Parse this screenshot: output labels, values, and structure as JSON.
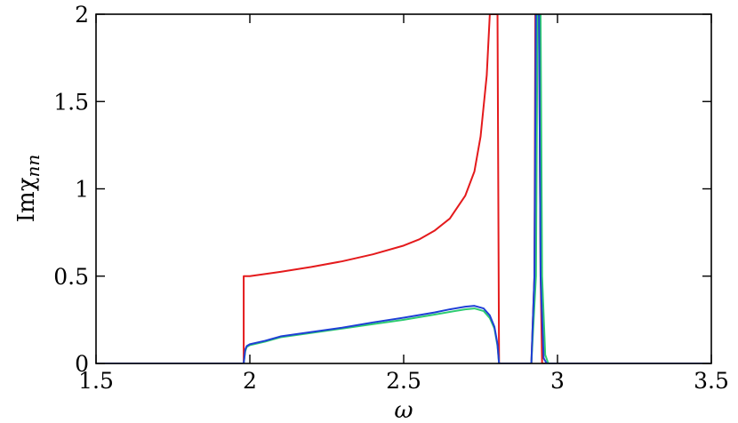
{
  "chart_data": {
    "type": "line",
    "xlabel": "ω",
    "ylabel": "Imχ",
    "ylabel_subscript": "nn",
    "xlim": [
      1.5,
      3.5
    ],
    "ylim": [
      0,
      2
    ],
    "x_ticks": [
      1.5,
      2,
      2.5,
      3,
      3.5
    ],
    "x_tick_labels": [
      "1.5",
      "2",
      "2.5",
      "3",
      "3.5"
    ],
    "y_ticks": [
      0,
      0.5,
      1,
      1.5,
      2
    ],
    "y_tick_labels": [
      "0",
      "0.5",
      "1",
      "1.5",
      "2"
    ],
    "grid": false,
    "series": [
      {
        "color": "#e41a1c",
        "points": [
          [
            1.5,
            0
          ],
          [
            1.98,
            0
          ],
          [
            1.98,
            0.5
          ],
          [
            2.0,
            0.5
          ],
          [
            2.1,
            0.525
          ],
          [
            2.2,
            0.553
          ],
          [
            2.3,
            0.585
          ],
          [
            2.4,
            0.625
          ],
          [
            2.5,
            0.675
          ],
          [
            2.55,
            0.71
          ],
          [
            2.6,
            0.76
          ],
          [
            2.65,
            0.83
          ],
          [
            2.7,
            0.96
          ],
          [
            2.73,
            1.1
          ],
          [
            2.75,
            1.3
          ],
          [
            2.77,
            1.65
          ],
          [
            2.78,
            2.0
          ],
          [
            2.805,
            2.0
          ],
          [
            2.81,
            0
          ],
          [
            2.915,
            0
          ],
          [
            2.925,
            0.5
          ],
          [
            2.928,
            2.0
          ],
          [
            2.94,
            2.0
          ],
          [
            2.945,
            0.5
          ],
          [
            2.95,
            0
          ],
          [
            3.5,
            0
          ]
        ]
      },
      {
        "color": "#2ecc71",
        "points": [
          [
            1.5,
            0
          ],
          [
            1.98,
            0
          ],
          [
            1.985,
            0.07
          ],
          [
            1.99,
            0.095
          ],
          [
            2.0,
            0.105
          ],
          [
            2.05,
            0.125
          ],
          [
            2.1,
            0.15
          ],
          [
            2.2,
            0.175
          ],
          [
            2.3,
            0.2
          ],
          [
            2.4,
            0.225
          ],
          [
            2.5,
            0.25
          ],
          [
            2.6,
            0.28
          ],
          [
            2.65,
            0.295
          ],
          [
            2.7,
            0.31
          ],
          [
            2.73,
            0.315
          ],
          [
            2.76,
            0.3
          ],
          [
            2.78,
            0.26
          ],
          [
            2.795,
            0.2
          ],
          [
            2.805,
            0.1
          ],
          [
            2.81,
            0
          ],
          [
            2.915,
            0
          ],
          [
            2.93,
            0.5
          ],
          [
            2.935,
            2.0
          ],
          [
            2.945,
            2.0
          ],
          [
            2.95,
            0.5
          ],
          [
            2.96,
            0.05
          ],
          [
            2.97,
            0
          ],
          [
            3.5,
            0
          ]
        ]
      },
      {
        "color": "#1f3fd6",
        "points": [
          [
            1.5,
            0
          ],
          [
            1.98,
            0
          ],
          [
            1.985,
            0.08
          ],
          [
            1.99,
            0.1
          ],
          [
            2.0,
            0.11
          ],
          [
            2.05,
            0.13
          ],
          [
            2.1,
            0.155
          ],
          [
            2.2,
            0.18
          ],
          [
            2.3,
            0.205
          ],
          [
            2.4,
            0.235
          ],
          [
            2.5,
            0.262
          ],
          [
            2.6,
            0.292
          ],
          [
            2.65,
            0.31
          ],
          [
            2.7,
            0.325
          ],
          [
            2.73,
            0.33
          ],
          [
            2.76,
            0.315
          ],
          [
            2.78,
            0.275
          ],
          [
            2.795,
            0.21
          ],
          [
            2.805,
            0.11
          ],
          [
            2.81,
            0
          ],
          [
            2.915,
            0
          ],
          [
            2.925,
            0.5
          ],
          [
            2.93,
            2.0
          ],
          [
            2.94,
            2.0
          ],
          [
            2.945,
            0.5
          ],
          [
            2.955,
            0.03
          ],
          [
            2.965,
            0
          ],
          [
            3.5,
            0
          ]
        ]
      }
    ]
  }
}
